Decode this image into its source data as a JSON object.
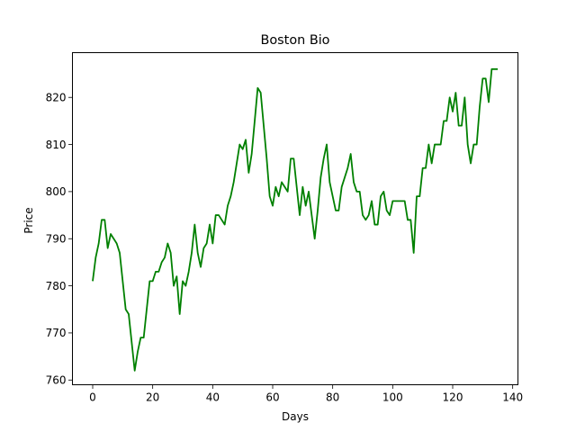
{
  "chart_data": {
    "type": "line",
    "title": "Boston Bio",
    "xlabel": "Days",
    "ylabel": "Price",
    "xlim": [
      -6.75,
      141.75
    ],
    "ylim": [
      759.0,
      829.5
    ],
    "xticks": [
      0,
      20,
      40,
      60,
      80,
      100,
      120,
      140
    ],
    "yticks": [
      760,
      770,
      780,
      790,
      800,
      810,
      820
    ],
    "grid": false,
    "legend": "none",
    "series": [
      {
        "color": "#008000",
        "x": [
          0,
          1,
          2,
          3,
          4,
          5,
          6,
          7,
          8,
          9,
          10,
          11,
          12,
          13,
          14,
          15,
          16,
          17,
          18,
          19,
          20,
          21,
          22,
          23,
          24,
          25,
          26,
          27,
          28,
          29,
          30,
          31,
          32,
          33,
          34,
          35,
          36,
          37,
          38,
          39,
          40,
          41,
          42,
          43,
          44,
          45,
          46,
          47,
          48,
          49,
          50,
          51,
          52,
          53,
          54,
          55,
          56,
          57,
          58,
          59,
          60,
          61,
          62,
          63,
          64,
          65,
          66,
          67,
          68,
          69,
          70,
          71,
          72,
          73,
          74,
          75,
          76,
          77,
          78,
          79,
          80,
          81,
          82,
          83,
          84,
          85,
          86,
          87,
          88,
          89,
          90,
          91,
          92,
          93,
          94,
          95,
          96,
          97,
          98,
          99,
          100,
          101,
          102,
          103,
          104,
          105,
          106,
          107,
          108,
          109,
          110,
          111,
          112,
          113,
          114,
          115,
          116,
          117,
          118,
          119,
          120,
          121,
          122,
          123,
          124,
          125,
          126,
          127,
          128,
          129,
          130,
          131,
          132,
          133,
          134,
          135
        ],
        "values": [
          781,
          786,
          789,
          794,
          794,
          788,
          791,
          790,
          789,
          787,
          781,
          775,
          774,
          768,
          762,
          766,
          769,
          769,
          775,
          781,
          781,
          783,
          783,
          785,
          786,
          789,
          787,
          780,
          782,
          774,
          781,
          780,
          783,
          787,
          793,
          787,
          784,
          788,
          789,
          793,
          789,
          795,
          795,
          794,
          793,
          797,
          799,
          802,
          806,
          810,
          809,
          811,
          804,
          808,
          815,
          822,
          821,
          814,
          807,
          799,
          797,
          801,
          799,
          802,
          801,
          800,
          807,
          807,
          801,
          795,
          801,
          797,
          800,
          795,
          790,
          796,
          803,
          807,
          810,
          802,
          799,
          796,
          796,
          801,
          803,
          805,
          808,
          802,
          800,
          800,
          795,
          794,
          795,
          798,
          793,
          793,
          799,
          800,
          796,
          795,
          798,
          798,
          798,
          798,
          798,
          794,
          794,
          787,
          799,
          799,
          805,
          805,
          810,
          806,
          810,
          810,
          810,
          815,
          815,
          820,
          817,
          821,
          814,
          814,
          820,
          810,
          806,
          810,
          810,
          818,
          824,
          824,
          819,
          826,
          826,
          826
        ]
      }
    ]
  }
}
